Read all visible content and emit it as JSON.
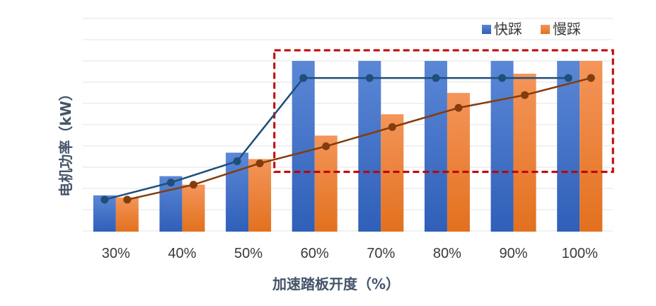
{
  "chart_data": {
    "type": "bar",
    "categories": [
      "30%",
      "40%",
      "50%",
      "60%",
      "70%",
      "80%",
      "90%",
      "100%"
    ],
    "series": [
      {
        "name": "快踩",
        "values": [
          17,
          26,
          37,
          80,
          80,
          80,
          80,
          80
        ],
        "color": "#4472c4",
        "line_color": "#1f4e79"
      },
      {
        "name": "慢踩",
        "values": [
          16,
          22,
          34,
          45,
          55,
          65,
          74,
          80
        ],
        "color": "#ed7d31",
        "line_color": "#843c0c"
      }
    ],
    "line_series": [
      {
        "name": "快踩",
        "values": [
          15,
          23,
          33,
          72,
          72,
          72,
          72,
          72
        ]
      },
      {
        "name": "慢踩",
        "values": [
          15,
          22,
          32,
          40,
          49,
          58,
          64,
          72
        ]
      }
    ],
    "xlabel": "加速踏板开度（%）",
    "ylabel": "电机功率（kW）",
    "ylim": [
      0,
      80
    ],
    "grid": true,
    "legend_position": "top-right",
    "highlight_box": {
      "from_category": "60%",
      "to_category": "100%",
      "y_range": [
        28,
        85
      ],
      "color": "#c00000",
      "style": "dashed"
    }
  }
}
